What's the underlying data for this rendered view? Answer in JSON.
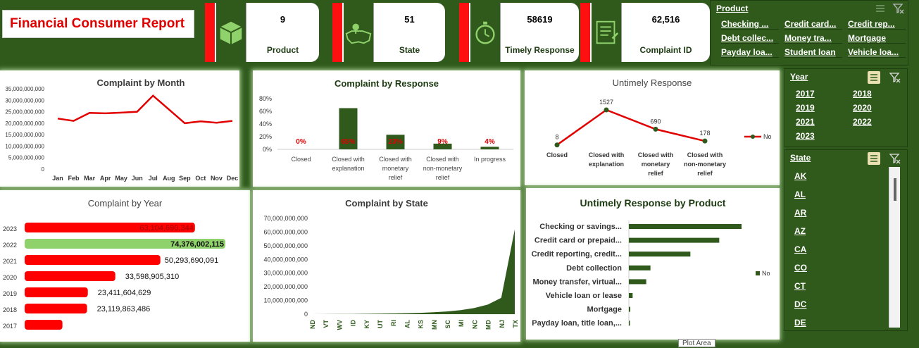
{
  "report": {
    "title": "Financial Consumer Report"
  },
  "kpis": [
    {
      "value": "9",
      "label": "Product",
      "icon": "box-icon"
    },
    {
      "value": "51",
      "label": "State",
      "icon": "map-pin-icon"
    },
    {
      "value": "58619",
      "label": "Timely Response",
      "icon": "stopwatch-icon"
    },
    {
      "value": "62,516",
      "label": "Complaint ID",
      "icon": "document-icon"
    }
  ],
  "slicers": {
    "product": {
      "title": "Product",
      "items": [
        "Checking ...",
        "Credit card...",
        "Credit rep...",
        "Debt collec...",
        "Money tra...",
        "Mortgage",
        "Payday loa...",
        "Student loan",
        "Vehicle loa..."
      ]
    },
    "year": {
      "title": "Year",
      "items": [
        "2017",
        "2018",
        "2019",
        "2020",
        "2021",
        "2022",
        "2023"
      ]
    },
    "state": {
      "title": "State",
      "items": [
        "AK",
        "AL",
        "AR",
        "AZ",
        "CA",
        "CO",
        "CT",
        "DC",
        "DE"
      ]
    }
  },
  "charts": {
    "month": {
      "title": "Complaint by Month"
    },
    "response": {
      "title": "Complaint by Response"
    },
    "untimely": {
      "title": "Untimely Response",
      "legend": "No"
    },
    "year": {
      "title": "Complaint by Year"
    },
    "state": {
      "title": "Complaint by State"
    },
    "product": {
      "title": "Untimely Response by Product",
      "legend": "No"
    }
  },
  "tooltip": {
    "text": "Plot Area"
  },
  "chart_data": [
    {
      "type": "line",
      "title": "Complaint by Month",
      "x": [
        "Jan",
        "Feb",
        "Mar",
        "Apr",
        "May",
        "Jun",
        "Jul",
        "Aug",
        "Sep",
        "Oct",
        "Nov",
        "Dec"
      ],
      "values": [
        22000000000,
        21000000000,
        24500000000,
        24300000000,
        24600000000,
        25000000000,
        32000000000,
        26000000000,
        20000000000,
        20800000000,
        20200000000,
        21000000000
      ],
      "yticks": [
        "0",
        "5,000,000,000",
        "10,000,000,000",
        "15,000,000,000",
        "20,000,000,000",
        "25,000,000,000",
        "30,000,000,000",
        "35,000,000,000"
      ],
      "ylim": [
        0,
        35000000000
      ],
      "color": "#e00000"
    },
    {
      "type": "bar",
      "title": "Complaint by Response",
      "categories": [
        "Closed",
        "Closed with explanation",
        "Closed with monetary relief",
        "Closed with non-monetary relief",
        "In progress"
      ],
      "values": [
        0,
        65,
        23,
        9,
        4
      ],
      "labels": [
        "0%",
        "65%",
        "23%",
        "9%",
        "4%"
      ],
      "yticks": [
        "0%",
        "20%",
        "40%",
        "60%",
        "80%"
      ],
      "ylim": [
        0,
        80
      ],
      "color": "#2f5a1c"
    },
    {
      "type": "line",
      "title": "Untimely Response",
      "categories": [
        "Closed",
        "Closed with explanation",
        "Closed with monetary relief",
        "Closed with non-monetary relief"
      ],
      "values": [
        8,
        1527,
        690,
        178
      ],
      "series": [
        {
          "name": "No",
          "values": [
            8,
            1527,
            690,
            178
          ]
        }
      ],
      "color": "#e00000"
    },
    {
      "type": "bar",
      "title": "Complaint by Year",
      "categories": [
        "2023",
        "2022",
        "2021",
        "2020",
        "2019",
        "2018",
        "2017"
      ],
      "values": [
        63104690344,
        74376002115,
        50293690091,
        33598905310,
        23411604629,
        23119863486,
        14000000000
      ],
      "labels": [
        "63,104,690,344",
        "74,376,002,115",
        "50,293,690,091",
        "33,598,905,310",
        "23,411,604,629",
        "23,119,863,486",
        ""
      ],
      "highlight": "2022",
      "color": "#ff0000",
      "highlight_color": "#8fd16a"
    },
    {
      "type": "area",
      "title": "Complaint by State",
      "categories": [
        "ND",
        "VT",
        "WV",
        "ID",
        "KY",
        "UT",
        "RI",
        "AL",
        "KS",
        "MN",
        "SC",
        "MI",
        "NC",
        "MD",
        "NJ",
        "TX"
      ],
      "values": [
        0,
        50000000,
        100000000,
        150000000,
        250000000,
        350000000,
        500000000,
        700000000,
        1000000000,
        1400000000,
        2000000000,
        3000000000,
        4500000000,
        7000000000,
        12000000000,
        62000000000
      ],
      "yticks": [
        "0",
        "10,000,000,000",
        "20,000,000,000",
        "30,000,000,000",
        "40,000,000,000",
        "50,000,000,000",
        "60,000,000,000",
        "70,000,000,000"
      ],
      "ylim": [
        0,
        70000000000
      ],
      "color": "#2f5a1c"
    },
    {
      "type": "bar",
      "title": "Untimely Response by Product",
      "categories": [
        "Checking or savings...",
        "Credit card or prepaid...",
        "Credit reporting, credit...",
        "Debt collection",
        "Money transfer, virtual...",
        "Vehicle loan or lease",
        "Mortgage",
        "Payday loan, title loan,..."
      ],
      "values": [
        480,
        385,
        262,
        92,
        74,
        16,
        6,
        3
      ],
      "series": [
        {
          "name": "No",
          "values": [
            480,
            385,
            262,
            92,
            74,
            16,
            6,
            3
          ]
        }
      ],
      "color": "#2f5a1c"
    }
  ]
}
